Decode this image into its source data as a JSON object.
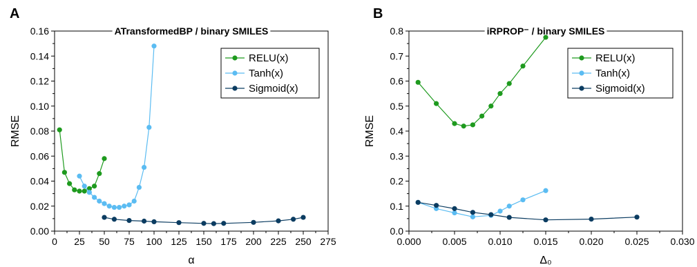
{
  "chart_data": [
    {
      "panel": "A",
      "type": "line",
      "title": "ATransformedBP / binary SMILES",
      "xlabel": "α",
      "ylabel": "RMSE",
      "xlim": [
        0,
        275
      ],
      "ylim": [
        0,
        0.16
      ],
      "xticks": [
        "0",
        "25",
        "50",
        "75",
        "100",
        "125",
        "150",
        "175",
        "200",
        "225",
        "250",
        "275"
      ],
      "yticks": [
        "0.00",
        "0.02",
        "0.04",
        "0.06",
        "0.08",
        "0.10",
        "0.12",
        "0.14",
        "0.16"
      ],
      "legend_position": "top-right",
      "grid": false,
      "series": [
        {
          "name": "RELU(x)",
          "color": "#1e9a1e",
          "x": [
            5,
            10,
            15,
            20,
            25,
            30,
            35,
            40,
            45,
            50
          ],
          "y": [
            0.081,
            0.047,
            0.038,
            0.033,
            0.032,
            0.032,
            0.034,
            0.036,
            0.046,
            0.058
          ]
        },
        {
          "name": "Tanh(x)",
          "color": "#5bbcf2",
          "x": [
            25,
            30,
            35,
            40,
            45,
            50,
            55,
            60,
            65,
            70,
            75,
            80,
            85,
            90,
            95,
            100
          ],
          "y": [
            0.044,
            0.036,
            0.031,
            0.027,
            0.024,
            0.022,
            0.02,
            0.019,
            0.019,
            0.02,
            0.021,
            0.024,
            0.035,
            0.051,
            0.083,
            0.148
          ]
        },
        {
          "name": "Sigmoid(x)",
          "color": "#0b3c61",
          "x": [
            50,
            60,
            75,
            90,
            100,
            125,
            150,
            160,
            170,
            200,
            225,
            240,
            250
          ],
          "y": [
            0.011,
            0.0095,
            0.0085,
            0.008,
            0.0075,
            0.0068,
            0.0062,
            0.006,
            0.0062,
            0.007,
            0.0082,
            0.0095,
            0.011
          ]
        }
      ]
    },
    {
      "panel": "B",
      "type": "line",
      "title": "iRPROP⁻ / binary SMILES",
      "xlabel": "Δ₀",
      "ylabel": "RMSE",
      "xlim": [
        0,
        0.03
      ],
      "ylim": [
        0,
        0.8
      ],
      "xticks": [
        "0.000",
        "0.005",
        "0.010",
        "0.015",
        "0.020",
        "0.025",
        "0.030"
      ],
      "yticks": [
        "0.0",
        "0.1",
        "0.2",
        "0.3",
        "0.4",
        "0.5",
        "0.6",
        "0.7",
        "0.8"
      ],
      "legend_position": "top-right",
      "grid": false,
      "series": [
        {
          "name": "RELU(x)",
          "color": "#1e9a1e",
          "x": [
            0.001,
            0.003,
            0.005,
            0.006,
            0.007,
            0.008,
            0.009,
            0.01,
            0.011,
            0.0125,
            0.015
          ],
          "y": [
            0.595,
            0.51,
            0.43,
            0.42,
            0.425,
            0.46,
            0.5,
            0.55,
            0.59,
            0.66,
            0.775
          ]
        },
        {
          "name": "Tanh(x)",
          "color": "#5bbcf2",
          "x": [
            0.001,
            0.003,
            0.005,
            0.007,
            0.009,
            0.01,
            0.011,
            0.0125,
            0.015
          ],
          "y": [
            0.115,
            0.09,
            0.073,
            0.057,
            0.063,
            0.08,
            0.1,
            0.125,
            0.162
          ]
        },
        {
          "name": "Sigmoid(x)",
          "color": "#0b3c61",
          "x": [
            0.001,
            0.003,
            0.005,
            0.007,
            0.009,
            0.011,
            0.015,
            0.02,
            0.025
          ],
          "y": [
            0.115,
            0.103,
            0.09,
            0.075,
            0.066,
            0.055,
            0.045,
            0.048,
            0.056
          ]
        }
      ]
    }
  ]
}
